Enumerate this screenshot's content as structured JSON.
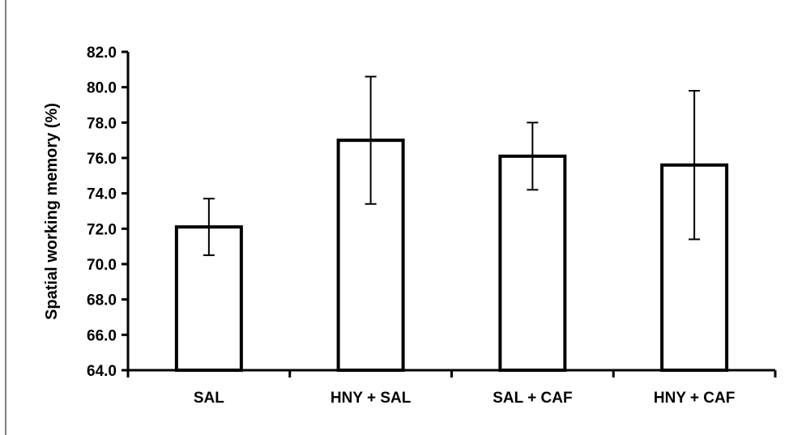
{
  "chart_data": {
    "type": "bar",
    "title": "",
    "xlabel": "",
    "ylabel": "Spatial working memory (%)",
    "categories": [
      "SAL",
      "HNY + SAL",
      "SAL + CAF",
      "HNY + CAF"
    ],
    "values": [
      72.1,
      77.0,
      76.1,
      75.6
    ],
    "error": [
      1.6,
      3.6,
      1.9,
      4.2
    ],
    "ylim": [
      64.0,
      82.0
    ],
    "yticks": [
      "64.0",
      "66.0",
      "68.0",
      "70.0",
      "72.0",
      "74.0",
      "76.0",
      "78.0",
      "80.0",
      "82.0"
    ],
    "grid": false,
    "bar_fill": "#ffffff",
    "bar_stroke": "#000000"
  }
}
